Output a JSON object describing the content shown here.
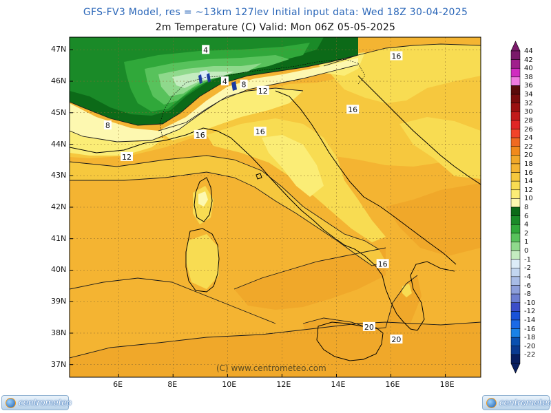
{
  "header": {
    "line1": "GFS-FV3 Model, res = ~13km 127lev    Initial input data: Wed 18Z 30-04-2025",
    "line2": "2m Temperature (C)  Valid: Mon 06Z 05-05-2025"
  },
  "watermark": "(C) www.centrometeo.com",
  "logo_text": "centrometeo",
  "map": {
    "lon_range": [
      4.2,
      19.3
    ],
    "lat_range": [
      36.6,
      47.4
    ],
    "lat_ticks": [
      {
        "v": 47,
        "label": "47N"
      },
      {
        "v": 46,
        "label": "46N"
      },
      {
        "v": 45,
        "label": "45N"
      },
      {
        "v": 44,
        "label": "44N"
      },
      {
        "v": 43,
        "label": "43N"
      },
      {
        "v": 42,
        "label": "42N"
      },
      {
        "v": 41,
        "label": "41N"
      },
      {
        "v": 40,
        "label": "40N"
      },
      {
        "v": 39,
        "label": "39N"
      },
      {
        "v": 38,
        "label": "38N"
      },
      {
        "v": 37,
        "label": "37N"
      }
    ],
    "lon_ticks": [
      {
        "v": 6,
        "label": "6E"
      },
      {
        "v": 8,
        "label": "8E"
      },
      {
        "v": 10,
        "label": "10E"
      },
      {
        "v": 12,
        "label": "12E"
      },
      {
        "v": 14,
        "label": "14E"
      },
      {
        "v": 16,
        "label": "16E"
      },
      {
        "v": 18,
        "label": "18E"
      }
    ],
    "contour_labels": [
      {
        "text": "4",
        "lon": 9.2,
        "lat": 47.0
      },
      {
        "text": "4",
        "lon": 9.9,
        "lat": 46.0
      },
      {
        "text": "8",
        "lon": 10.6,
        "lat": 45.9
      },
      {
        "text": "12",
        "lon": 11.3,
        "lat": 45.7
      },
      {
        "text": "16",
        "lon": 16.2,
        "lat": 46.8
      },
      {
        "text": "16",
        "lon": 14.6,
        "lat": 45.1
      },
      {
        "text": "16",
        "lon": 11.2,
        "lat": 44.4
      },
      {
        "text": "16",
        "lon": 9.0,
        "lat": 44.3
      },
      {
        "text": "8",
        "lon": 5.6,
        "lat": 44.6
      },
      {
        "text": "12",
        "lon": 6.3,
        "lat": 43.6
      },
      {
        "text": "16",
        "lon": 15.7,
        "lat": 40.2
      },
      {
        "text": "20",
        "lon": 15.2,
        "lat": 38.2
      },
      {
        "text": "20",
        "lon": 16.2,
        "lat": 37.8
      }
    ]
  },
  "legend": {
    "unit": "C",
    "levels": [
      {
        "label": "44",
        "color": "#7a1a6a"
      },
      {
        "label": "42",
        "color": "#a0208c"
      },
      {
        "label": "40",
        "color": "#d02cc0"
      },
      {
        "label": "38",
        "color": "#f07ae0"
      },
      {
        "label": "36",
        "color": "#5a0a0a"
      },
      {
        "label": "34",
        "color": "#7a0c0c"
      },
      {
        "label": "32",
        "color": "#9a1010"
      },
      {
        "label": "30",
        "color": "#c21a1a"
      },
      {
        "label": "28",
        "color": "#e02626"
      },
      {
        "label": "26",
        "color": "#f2442a"
      },
      {
        "label": "24",
        "color": "#f06a22"
      },
      {
        "label": "22",
        "color": "#f08a1c"
      },
      {
        "label": "20",
        "color": "#f0a82a"
      },
      {
        "label": "18",
        "color": "#f4b432"
      },
      {
        "label": "16",
        "color": "#f6c83e"
      },
      {
        "label": "14",
        "color": "#f8dc52"
      },
      {
        "label": "12",
        "color": "#fbed76"
      },
      {
        "label": "10",
        "color": "#fdf8b0"
      },
      {
        "label": "8",
        "color": "#0c6a18"
      },
      {
        "label": "6",
        "color": "#1a8a28"
      },
      {
        "label": "4",
        "color": "#30a83a"
      },
      {
        "label": "2",
        "color": "#58c25c"
      },
      {
        "label": "1",
        "color": "#8fd98c"
      },
      {
        "label": "0",
        "color": "#c4ecc0"
      },
      {
        "label": "-1",
        "color": "#dcecf8"
      },
      {
        "label": "-2",
        "color": "#c2d6f0"
      },
      {
        "label": "-4",
        "color": "#a8bce6"
      },
      {
        "label": "-6",
        "color": "#8c9eda"
      },
      {
        "label": "-8",
        "color": "#6c7ed0"
      },
      {
        "label": "-10",
        "color": "#3c4ec8"
      },
      {
        "label": "-12",
        "color": "#1a52d8"
      },
      {
        "label": "-14",
        "color": "#1a6ae6"
      },
      {
        "label": "-16",
        "color": "#1a82e6"
      },
      {
        "label": "-18",
        "color": "#0a50b0"
      },
      {
        "label": "-20",
        "color": "#0a3a90"
      },
      {
        "label": "-22",
        "color": "#081e60"
      }
    ]
  }
}
